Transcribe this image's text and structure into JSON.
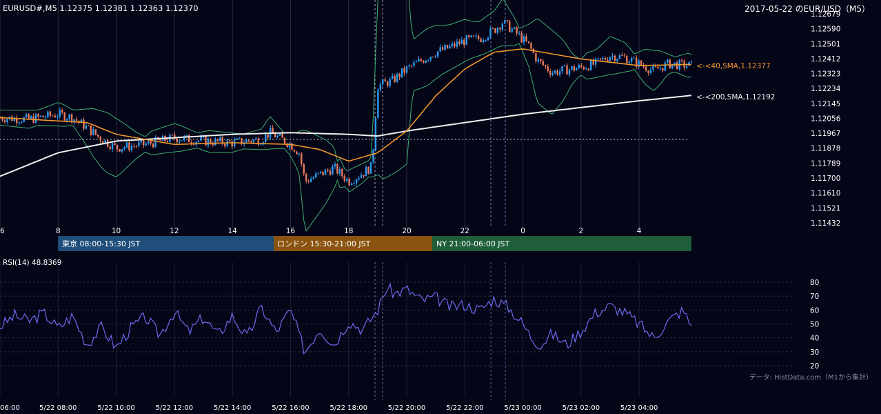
{
  "header": {
    "symbol_line": "EURUSD#,M5 1.12375 1.12381 1.12363 1.12370",
    "date_title": "2017-05-22 のEUR/USD（M5）"
  },
  "sessions": [
    {
      "label": "東京 08:00-15:30 JST",
      "color": "#1f4e7a"
    },
    {
      "label": "ロンドン 15:30-21:00 JST",
      "color": "#8a5410"
    },
    {
      "label": "NY 21:00-06:00 JST",
      "color": "#1f5e3a"
    }
  ],
  "indicators": {
    "sma40_label": "<-<40,SMA,1.12377",
    "sma200_label": "<-<200,SMA,1.12192",
    "rsi_label": "RSI(14) 48.8369",
    "credit": "データ: HistData.com（M1から集計）"
  },
  "colors": {
    "bull": "#2a9df4",
    "bear": "#e87a5a",
    "sma40": "#f0962b",
    "sma200": "#f0f0f0",
    "bollinger": "#3cb371",
    "rsi": "#6b6cf0"
  },
  "chart_data": [
    {
      "type": "line",
      "panel": "price",
      "series": [
        {
          "name": "SMA40",
          "values_at_hours": {
            "x": [
              6,
              9,
              10,
              12,
              14,
              16,
              17,
              18,
              19,
              20,
              21,
              22,
              23,
              24,
              26,
              28,
              29.8
            ],
            "y": [
              1.1206,
              1.1203,
              1.1196,
              1.119,
              1.1191,
              1.119,
              1.1187,
              1.118,
              1.1185,
              1.1198,
              1.1219,
              1.1235,
              1.1245,
              1.1247,
              1.1241,
              1.1237,
              1.12377
            ]
          }
        },
        {
          "name": "SMA200",
          "values_at_hours": {
            "x": [
              6,
              8,
              10,
              12,
              14,
              16,
              18,
              19,
              20,
              22,
              24,
              26,
              28,
              29.8
            ],
            "y": [
              1.1171,
              1.1185,
              1.1192,
              1.1194,
              1.1196,
              1.1197,
              1.1196,
              1.1195,
              1.1198,
              1.1203,
              1.1208,
              1.1212,
              1.1216,
              1.12192
            ]
          }
        }
      ],
      "candle_path_hours": {
        "x": [
          6,
          7,
          8,
          8.5,
          9,
          9.5,
          10,
          11,
          12,
          13,
          14,
          15,
          15.3,
          16,
          16.3,
          16.5,
          17,
          17.5,
          18,
          18.5,
          18.8,
          19,
          19.5,
          20,
          20.5,
          21,
          21.5,
          22,
          22.5,
          23,
          23.3,
          23.8,
          24.2,
          24.5,
          25,
          26,
          26.5,
          27,
          27.5,
          28,
          28.5,
          29,
          29.8
        ],
        "y": [
          1.1206,
          1.1205,
          1.1208,
          1.1206,
          1.12,
          1.1193,
          1.1188,
          1.119,
          1.1194,
          1.1192,
          1.1191,
          1.1193,
          1.1197,
          1.119,
          1.1185,
          1.1168,
          1.1172,
          1.1176,
          1.1168,
          1.1173,
          1.1177,
          1.1225,
          1.1228,
          1.1235,
          1.124,
          1.1245,
          1.1248,
          1.1252,
          1.1253,
          1.1258,
          1.1263,
          1.1256,
          1.1249,
          1.124,
          1.1233,
          1.1236,
          1.1238,
          1.1243,
          1.1242,
          1.1238,
          1.1234,
          1.1238,
          1.1237
        ]
      },
      "y_ticks": [
        "1.12679",
        "1.12590",
        "1.12501",
        "1.12412",
        "1.12323",
        "1.12234",
        "1.12145",
        "1.12056",
        "1.11967",
        "1.11878",
        "1.11789",
        "1.11700",
        "1.11610",
        "1.11521",
        "1.11432"
      ],
      "ylim": [
        1.11432,
        1.12679
      ],
      "x_ticks": [
        "6",
        "8",
        "10",
        "12",
        "14",
        "16",
        "18",
        "20",
        "22",
        "0",
        "2",
        "4"
      ],
      "xlim_hours": [
        6,
        30
      ],
      "reference_line": 1.1193
    },
    {
      "type": "line",
      "panel": "rsi",
      "series": [
        {
          "name": "RSI(14)",
          "x_hours": [
            6,
            6.5,
            7,
            7.5,
            8,
            8.5,
            9,
            9.5,
            10,
            10.5,
            11,
            11.5,
            12,
            12.5,
            13,
            13.5,
            14,
            14.5,
            15,
            15.5,
            16,
            16.5,
            17,
            17.5,
            18,
            18.5,
            19,
            19.3,
            19.6,
            20,
            20.5,
            21,
            21.5,
            22,
            22.5,
            23,
            23.5,
            24,
            24.3,
            24.6,
            25,
            25.5,
            26,
            26.5,
            27,
            27.5,
            28,
            28.5,
            29,
            29.5,
            29.8
          ],
          "values": [
            48,
            56,
            52,
            58,
            47,
            56,
            35,
            48,
            33,
            47,
            55,
            42,
            59,
            44,
            55,
            42,
            56,
            40,
            62,
            44,
            60,
            30,
            47,
            35,
            52,
            46,
            60,
            76,
            72,
            75,
            67,
            69,
            62,
            64,
            60,
            68,
            62,
            50,
            40,
            35,
            43,
            35,
            45,
            58,
            63,
            58,
            50,
            40,
            52,
            60,
            48.8
          ]
        }
      ],
      "y_ticks": [
        "80",
        "70",
        "60",
        "50",
        "40",
        "30",
        "20"
      ],
      "ylim": [
        20,
        80
      ]
    }
  ],
  "x_axis_labels": [
    "06:00",
    "5/22 08:00",
    "5/22 10:00",
    "5/22 12:00",
    "5/22 14:00",
    "5/22 16:00",
    "5/22 18:00",
    "5/22 20:00",
    "5/22 22:00",
    "5/23 00:00",
    "5/23 02:00",
    "5/23 04:00"
  ]
}
